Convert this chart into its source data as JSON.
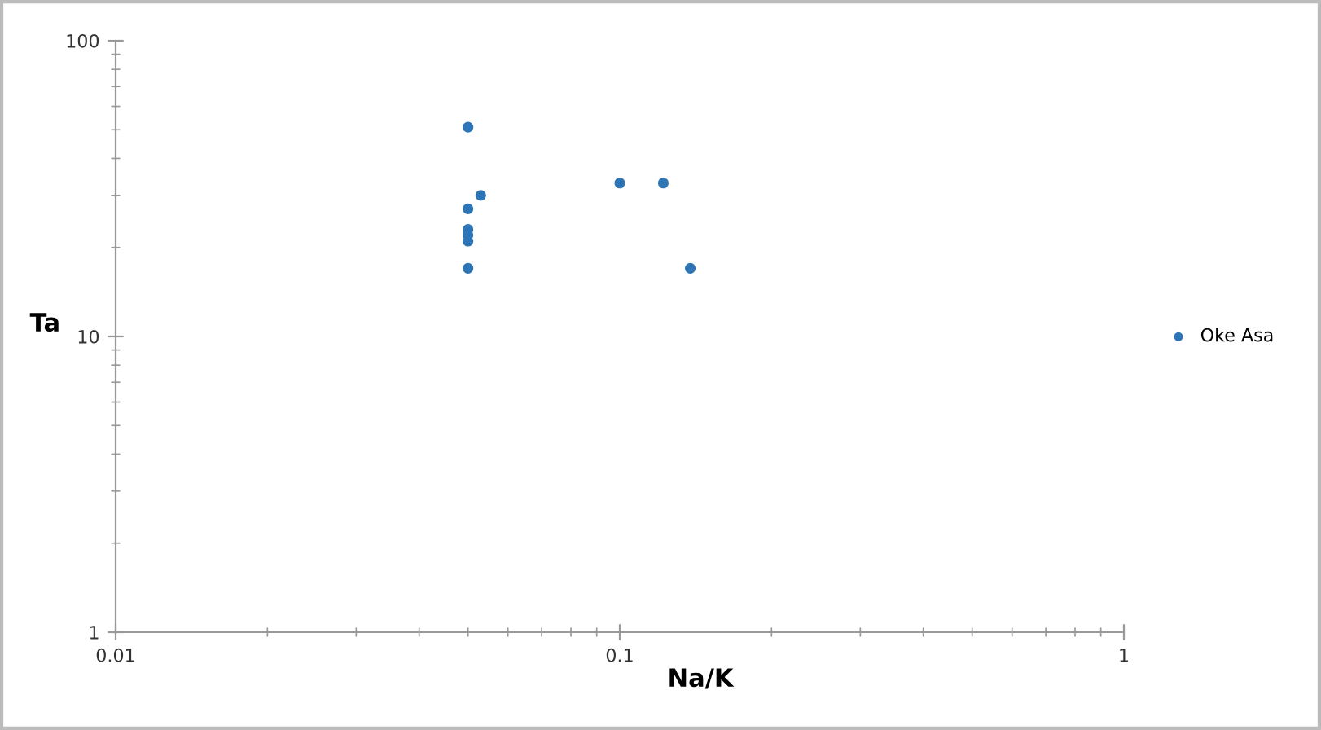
{
  "chart_data": {
    "type": "scatter",
    "xlabel": "Na/K",
    "ylabel": "Ta",
    "log": "xy",
    "x": [
      0.05,
      0.053,
      0.05,
      0.05,
      0.05,
      0.05,
      0.05,
      0.1,
      0.122,
      0.138
    ],
    "series": [
      {
        "name": "Oke Asa",
        "color": "#2e75b6",
        "values": [
          51,
          30,
          27,
          23,
          22,
          21,
          17,
          33,
          33,
          17
        ]
      }
    ],
    "xlim": [
      0.01,
      1
    ],
    "ylim": [
      1,
      100
    ],
    "xticks": [
      0.01,
      0.1,
      1
    ],
    "yticks": [
      1,
      10,
      100
    ],
    "grid": false,
    "legend": "right",
    "marker": "circle"
  }
}
